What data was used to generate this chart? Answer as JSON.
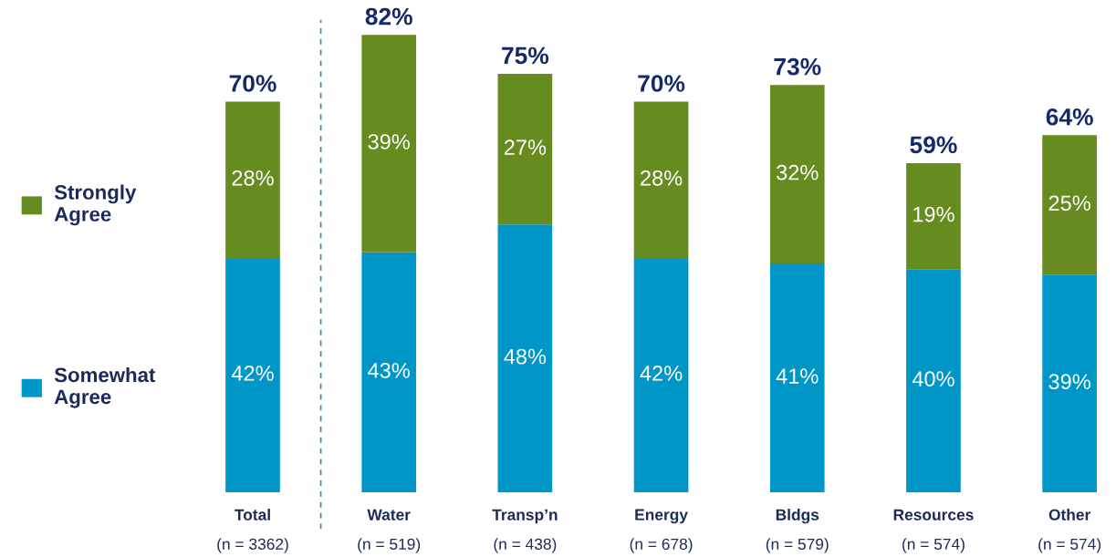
{
  "chart_data": {
    "type": "bar",
    "stacked": true,
    "categories": [
      "Total\n(n = 3362)",
      "Water\n(n = 519)",
      "Transp’n\n(n = 438)",
      "Energy\n(n = 678)",
      "Bldgs\n(n = 579)",
      "Resources\n(n = 574)",
      "Other\n(n = 574)"
    ],
    "series": [
      {
        "name": "Somewhat Agree",
        "color": "#0096c8",
        "values": [
          42,
          43,
          48,
          42,
          41,
          40,
          39
        ],
        "value_labels": [
          "42%",
          "43%",
          "48%",
          "42%",
          "41%",
          "40%",
          "39%"
        ]
      },
      {
        "name": "Strongly Agree",
        "color": "#668b1f",
        "values": [
          28,
          39,
          27,
          28,
          32,
          19,
          25
        ],
        "value_labels": [
          "28%",
          "39%",
          "27%",
          "28%",
          "32%",
          "19%",
          "25%"
        ]
      }
    ],
    "totals": [
      "70%",
      "82%",
      "75%",
      "70%",
      "73%",
      "59%",
      "64%"
    ],
    "tick_labels": "x",
    "grid": false,
    "legend": "left"
  }
}
